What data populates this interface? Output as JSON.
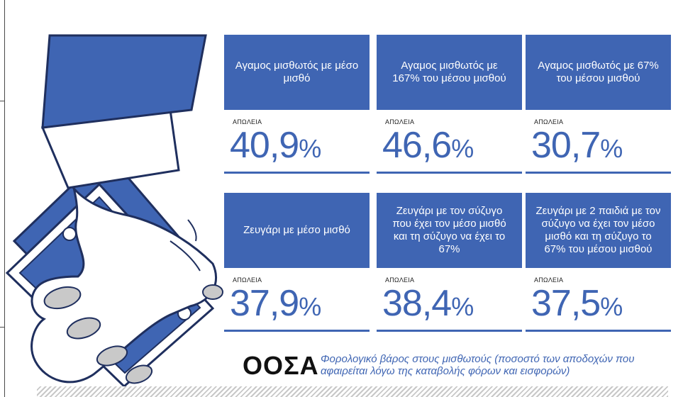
{
  "cards": [
    {
      "title": "Αγαμος μισθωτός με μέσο μισθό",
      "label": "ΑΠΩΛΕΙΑ",
      "number": "40,9",
      "unit": "%"
    },
    {
      "title": "Αγαμος μισθωτός με 167% του μέσου μισθού",
      "label": "ΑΠΩΛΕΙΑ",
      "number": "46,6",
      "unit": "%"
    },
    {
      "title": "Αγαμος μισθωτός με 67% του μέσου μισθού",
      "label": "ΑΠΩΛΕΙΑ",
      "number": "30,7",
      "unit": "%"
    },
    {
      "title": "Ζευγάρι με μέσο μισθό",
      "label": "ΑΠΩΛΕΙΑ",
      "number": "37,9",
      "unit": "%"
    },
    {
      "title": "Ζευγάρι με τον σύζυγο που έχει τον μέσο μισθό και τη σύζυγο να έχει το 67%",
      "label": "ΑΠΩΛΕΙΑ",
      "number": "38,4",
      "unit": "%"
    },
    {
      "title": "Ζευγάρι με 2 παιδιά με τον σύζυγο να έχει τον μέσο μισθό και τη σύζυγο το 67% του μέσου μισθού",
      "label": "ΑΠΩΛΕΙΑ",
      "number": "37,5",
      "unit": "%"
    }
  ],
  "source": {
    "name": "ΟΟΣΑ",
    "caption": "Φορολογικό βάρος στους μισθωτούς (ποσοστό των αποδοχών που αφαιρείται λόγω της καταβολής φόρων και εισφορών)"
  },
  "colors": {
    "accent": "#3f65b3",
    "cuff": "#ffffff",
    "skin": "#ffffff",
    "nails": "#c9c9c9"
  },
  "icons": {
    "illustration": "hand-holding-money-icon"
  }
}
